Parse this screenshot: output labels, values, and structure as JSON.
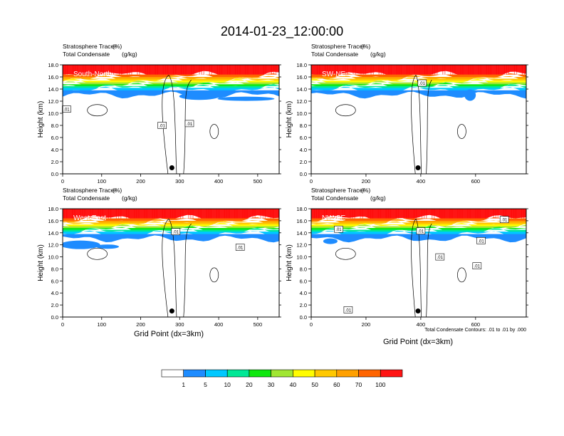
{
  "title": "2014-01-23_12:00:00",
  "panel_header": {
    "line1_name": "Stratosphere Tracer",
    "line1_unit": "(%)",
    "line2_name": "Total Condensate",
    "line2_unit": "(g/kg)"
  },
  "y_axis_label": "Height (km)",
  "x_axis_label": "Grid Point (dx=3km)",
  "contour_note": "Total Condensate Contours: .01 to .01 by .000",
  "colorbar": {
    "labels": [
      "1",
      "5",
      "10",
      "20",
      "30",
      "40",
      "50",
      "60",
      "70",
      "100"
    ],
    "colors": [
      "#ffffff",
      "#1e8cff",
      "#00c8ff",
      "#00e896",
      "#10e810",
      "#a0e632",
      "#fffc00",
      "#ffc800",
      "#ffa000",
      "#ff6400",
      "#ff1414"
    ]
  },
  "chart_data": [
    {
      "type": "heatmap",
      "panel_label": "South-North",
      "xlim": [
        0,
        555
      ],
      "ylim": [
        0,
        18
      ],
      "x_ticks": [
        "0",
        "100",
        "200",
        "300",
        "400",
        "500"
      ],
      "y_ticks": [
        "0.0",
        "2.0",
        "4.0",
        "6.0",
        "8.0",
        "10.0",
        "12.0",
        "14.0",
        "16.0",
        "18.0"
      ],
      "marker": {
        "x": 280,
        "y": 1.0
      },
      "contour_labels": [
        {
          "text": ".01",
          "x": 10,
          "y": 10.7
        },
        {
          "text": ".01",
          "x": 255,
          "y": 8.0
        },
        {
          "text": ".01",
          "x": 325,
          "y": 8.3
        }
      ]
    },
    {
      "type": "heatmap",
      "panel_label": "SW-NE",
      "xlim": [
        0,
        785
      ],
      "ylim": [
        0,
        18
      ],
      "x_ticks": [
        "0",
        "200",
        "400",
        "600"
      ],
      "y_ticks": [
        "0.0",
        "2.0",
        "4.0",
        "6.0",
        "8.0",
        "10.0",
        "12.0",
        "14.0",
        "16.0",
        "18.0"
      ],
      "marker": {
        "x": 390,
        "y": 1.0
      },
      "contour_labels": [
        {
          "text": ".01",
          "x": 405,
          "y": 15.0
        }
      ]
    },
    {
      "type": "heatmap",
      "panel_label": "West-East",
      "xlim": [
        0,
        555
      ],
      "ylim": [
        0,
        18
      ],
      "x_ticks": [
        "0",
        "100",
        "200",
        "300",
        "400",
        "500"
      ],
      "y_ticks": [
        "0.0",
        "2.0",
        "4.0",
        "6.0",
        "8.0",
        "10.0",
        "12.0",
        "14.0",
        "16.0",
        "18.0"
      ],
      "marker": {
        "x": 280,
        "y": 1.0
      },
      "contour_labels": [
        {
          "text": ".01",
          "x": 290,
          "y": 14.2
        },
        {
          "text": ".01",
          "x": 455,
          "y": 11.6
        }
      ]
    },
    {
      "type": "heatmap",
      "panel_label": "NW-SE",
      "xlim": [
        0,
        785
      ],
      "ylim": [
        0,
        18
      ],
      "x_ticks": [
        "0",
        "200",
        "400",
        "600"
      ],
      "y_ticks": [
        "0.0",
        "2.0",
        "4.0",
        "6.0",
        "8.0",
        "10.0",
        "12.0",
        "14.0",
        "16.0",
        "18.0"
      ],
      "marker": {
        "x": 390,
        "y": 1.0
      },
      "contour_labels": [
        {
          "text": ".01",
          "x": 100,
          "y": 14.6
        },
        {
          "text": ".01",
          "x": 400,
          "y": 14.3
        },
        {
          "text": ".01",
          "x": 470,
          "y": 10.0
        },
        {
          "text": ".01",
          "x": 620,
          "y": 12.7
        },
        {
          "text": ".01",
          "x": 605,
          "y": 8.5
        },
        {
          "text": ".01",
          "x": 705,
          "y": 16.2
        },
        {
          "text": ".01",
          "x": 135,
          "y": 1.2
        }
      ]
    }
  ]
}
